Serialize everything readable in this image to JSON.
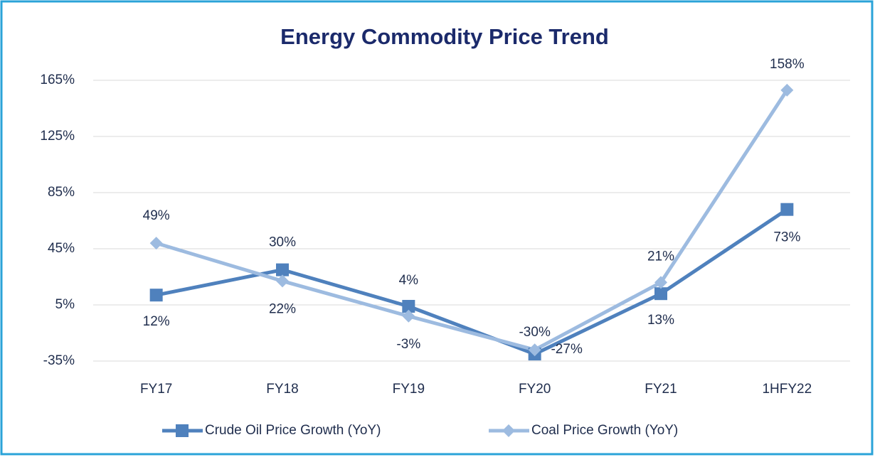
{
  "chart_data": {
    "type": "line",
    "title": "Energy Commodity Price Trend",
    "categories": [
      "FY17",
      "FY18",
      "FY19",
      "FY20",
      "FY21",
      "1HFY22"
    ],
    "series": [
      {
        "name": "Crude Oil Price Growth (YoY)",
        "color": "#4f81bd",
        "marker": "square",
        "values": [
          12,
          30,
          4,
          -30,
          13,
          73
        ],
        "value_labels": [
          "12%",
          "30%",
          "4%",
          "-30%",
          "13%",
          "73%"
        ]
      },
      {
        "name": "Coal Price Growth (YoY)",
        "color": "#9dbbe0",
        "marker": "diamond",
        "values": [
          49,
          22,
          -3,
          -27,
          21,
          158
        ],
        "value_labels": [
          "49%",
          "22%",
          "-3%",
          "-27%",
          "21%",
          "158%"
        ]
      }
    ],
    "ylim": [
      -35,
      165
    ],
    "yticks": [
      {
        "value": -35,
        "label": "-35%"
      },
      {
        "value": 5,
        "label": "5%"
      },
      {
        "value": 45,
        "label": "45%"
      },
      {
        "value": 85,
        "label": "85%"
      },
      {
        "value": 125,
        "label": "125%"
      },
      {
        "value": 165,
        "label": "165%"
      }
    ],
    "grid": true,
    "legend": "bottom"
  }
}
